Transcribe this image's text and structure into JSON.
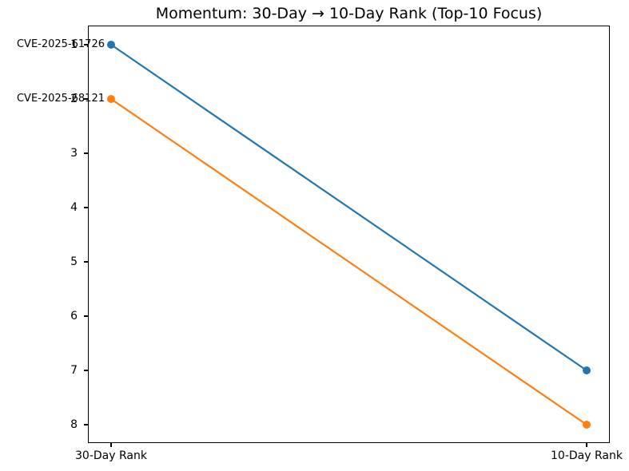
{
  "chart_data": {
    "type": "line",
    "variant": "slope-chart",
    "title": "Momentum: 30-Day → 10-Day Rank (Top-10 Focus)",
    "categories": [
      "30-Day Rank",
      "10-Day Rank"
    ],
    "series": [
      {
        "name": "CVE-2025-61726",
        "values": [
          1,
          7
        ],
        "color": "#1f77b4"
      },
      {
        "name": "CVE-2025-68121",
        "values": [
          2,
          8
        ],
        "color": "#ff7f0e"
      }
    ],
    "annotations": [
      {
        "text": "CVE-2025-61726",
        "at_category": "30-Day Rank",
        "at_value": 1
      },
      {
        "text": "CVE-2025-68121",
        "at_category": "30-Day Rank",
        "at_value": 2
      }
    ],
    "xlabel": "",
    "ylabel": "",
    "y_ticks": [
      1,
      2,
      3,
      4,
      5,
      6,
      7,
      8
    ],
    "y_axis_inverted": true,
    "ylim": [
      0.65,
      8.35
    ],
    "grid": false,
    "legend_position": "none",
    "marker": "circle",
    "line_width": 2.2,
    "marker_radius": 5,
    "colors": {
      "spine": "#000000",
      "text": "#000000",
      "background": "#ffffff"
    }
  }
}
